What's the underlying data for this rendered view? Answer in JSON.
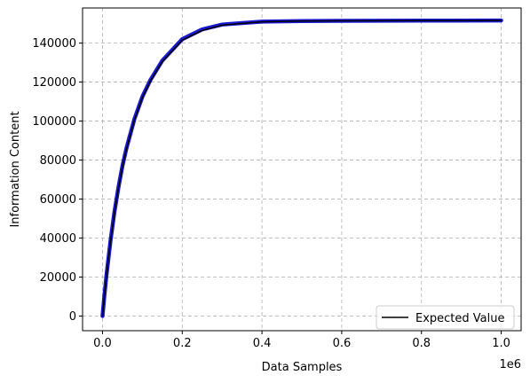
{
  "chart_data": {
    "type": "line",
    "title": "",
    "xlabel": "Data Samples",
    "ylabel": "Information Content",
    "x_offset_label": "1e6",
    "xlim": [
      -50000,
      1050000
    ],
    "ylim": [
      -7500,
      158000
    ],
    "x_ticks": [
      0,
      0.2,
      0.4,
      0.6,
      0.8,
      1.0
    ],
    "x_tick_labels": [
      "0.0",
      "0.2",
      "0.4",
      "0.6",
      "0.8",
      "1.0"
    ],
    "y_ticks": [
      0,
      20000,
      40000,
      60000,
      80000,
      100000,
      120000,
      140000
    ],
    "y_tick_labels": [
      "0",
      "20000",
      "40000",
      "60000",
      "80000",
      "100000",
      "120000",
      "140000"
    ],
    "grid": true,
    "legend_position": "lower right",
    "series": [
      {
        "name": "",
        "color": "#0000cd",
        "x": [
          0,
          5000,
          10000,
          20000,
          30000,
          40000,
          50000,
          60000,
          80000,
          100000,
          120000,
          150000,
          200000,
          250000,
          300000,
          400000,
          500000,
          600000,
          800000,
          1000000
        ],
        "y": [
          0,
          11000,
          21000,
          38500,
          53500,
          66000,
          77000,
          86000,
          101000,
          112500,
          121000,
          131000,
          142000,
          147000,
          149500,
          151000,
          151300,
          151400,
          151500,
          151600
        ]
      },
      {
        "name": "Expected Value",
        "color": "#000000",
        "x": [
          0,
          5000,
          10000,
          20000,
          30000,
          40000,
          50000,
          60000,
          80000,
          100000,
          120000,
          150000,
          200000,
          250000,
          300000,
          400000,
          500000,
          600000,
          800000,
          1000000
        ],
        "y": [
          0,
          10800,
          20800,
          38000,
          53000,
          65500,
          76500,
          85500,
          100500,
          112000,
          120500,
          130500,
          141500,
          146500,
          149200,
          150900,
          151300,
          151400,
          151500,
          151600
        ]
      }
    ]
  }
}
